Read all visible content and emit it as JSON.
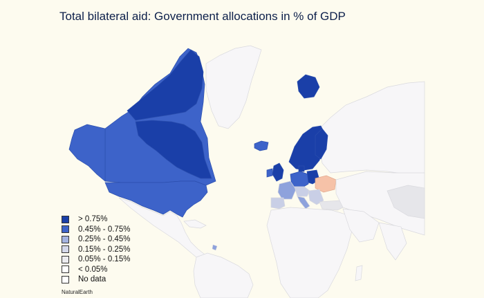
{
  "title": "Total bilateral aid: Government allocations in % of GDP",
  "source": "NaturalEarth",
  "colors": {
    "background": "#fdfbef",
    "land_default": "#f7f6f8",
    "border": "#d9d9de",
    "gt_075": "#1a3fa8",
    "r045_075": "#3d63c9",
    "r025_045": "#8ea2dc",
    "r015_025": "#c9cfe6",
    "r005_015": "#e6e6ea",
    "lt_005": "#f6c2a8",
    "no_data": "#ffffff"
  },
  "legend": [
    {
      "label": "> 0.75%",
      "color": "#1a3fa8"
    },
    {
      "label": "0.45% - 0.75%",
      "color": "#3d63c9"
    },
    {
      "label": "0.25% - 0.45%",
      "color": "#a3b3e0"
    },
    {
      "label": "0.15% - 0.25%",
      "color": "#d4d8ea"
    },
    {
      "label": "0.05% - 0.15%",
      "color": "#ececef"
    },
    {
      "label": "< 0.05%",
      "color": "#ffffff"
    },
    {
      "label": "No data",
      "color": "#ffffff"
    }
  ]
}
